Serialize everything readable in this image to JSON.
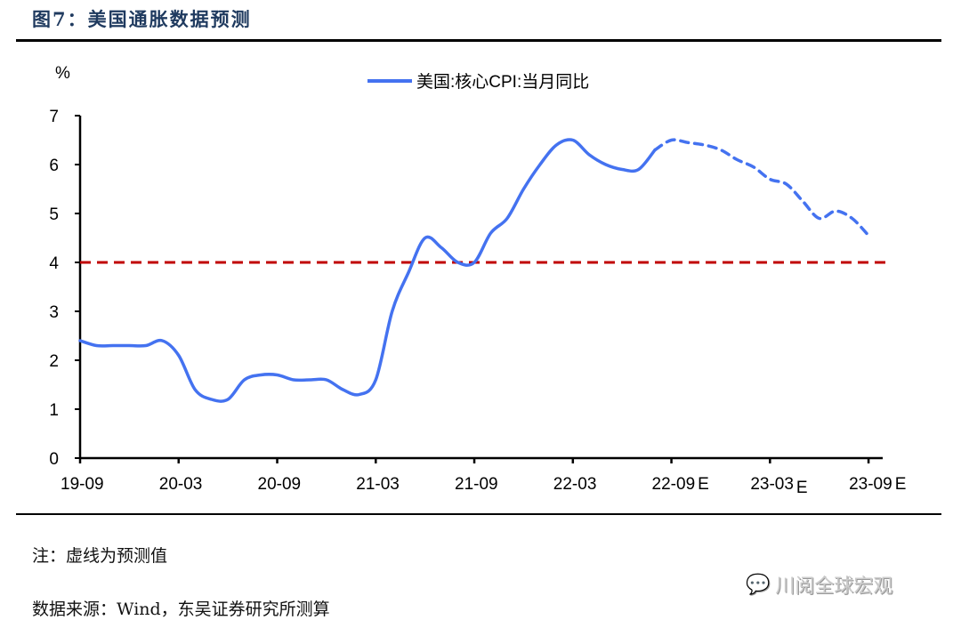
{
  "title": "图7：美国通胀数据预测",
  "note": "注：虚线为预测值",
  "source": "数据来源：Wind，东吴证券研究所测算",
  "watermark": "川阅全球宏观",
  "colors": {
    "series": "#4472f0",
    "threshold": "#c00000",
    "title": "#1f3a5f"
  },
  "chart_data": {
    "type": "line",
    "ylabel": "%",
    "ylim": [
      0,
      7
    ],
    "yticks": [
      0,
      1,
      2,
      3,
      4,
      5,
      6,
      7
    ],
    "xticks": [
      "19-09",
      "20-03",
      "20-09",
      "21-03",
      "21-09",
      "22-03",
      "22-09E",
      "23-03E",
      "23-09E"
    ],
    "xtick_labels": [
      {
        "text": "19-09",
        "suffix": ""
      },
      {
        "text": "20-03",
        "suffix": ""
      },
      {
        "text": "20-09",
        "suffix": ""
      },
      {
        "text": "21-03",
        "suffix": ""
      },
      {
        "text": "21-09",
        "suffix": ""
      },
      {
        "text": "22-03",
        "suffix": ""
      },
      {
        "text": "22-09",
        "suffix": "E"
      },
      {
        "text": "23-03",
        "suffix": "E"
      },
      {
        "text": "23-09",
        "suffix": "E"
      }
    ],
    "legend": {
      "label": "美国:核心CPI:当月同比",
      "placement": "top-center"
    },
    "reference_line": {
      "y": 4,
      "style": "dashed"
    },
    "x_start": "2019-09",
    "series": [
      {
        "name": "美国:核心CPI:当月同比",
        "style": "solid",
        "x": [
          "2019-09",
          "2019-10",
          "2019-11",
          "2019-12",
          "2020-01",
          "2020-02",
          "2020-03",
          "2020-04",
          "2020-05",
          "2020-06",
          "2020-07",
          "2020-08",
          "2020-09",
          "2020-10",
          "2020-11",
          "2020-12",
          "2021-01",
          "2021-02",
          "2021-03",
          "2021-04",
          "2021-05",
          "2021-06",
          "2021-07",
          "2021-08",
          "2021-09",
          "2021-10",
          "2021-11",
          "2021-12",
          "2022-01",
          "2022-02",
          "2022-03",
          "2022-04",
          "2022-05",
          "2022-06",
          "2022-07",
          "2022-08"
        ],
        "values": [
          2.4,
          2.3,
          2.3,
          2.3,
          2.3,
          2.4,
          2.1,
          1.4,
          1.2,
          1.2,
          1.6,
          1.7,
          1.7,
          1.6,
          1.6,
          1.6,
          1.4,
          1.3,
          1.6,
          3.0,
          3.8,
          4.5,
          4.3,
          4.0,
          4.0,
          4.6,
          4.9,
          5.5,
          6.0,
          6.4,
          6.5,
          6.2,
          6.0,
          5.9,
          5.9,
          6.3
        ]
      },
      {
        "style": "dashed",
        "x": [
          "2022-08",
          "2022-09",
          "2022-10",
          "2022-11",
          "2022-12",
          "2023-01",
          "2023-02",
          "2023-03",
          "2023-04",
          "2023-05",
          "2023-06",
          "2023-07",
          "2023-08",
          "2023-09"
        ],
        "values": [
          6.3,
          6.5,
          6.45,
          6.4,
          6.3,
          6.1,
          5.95,
          5.7,
          5.6,
          5.25,
          4.9,
          5.05,
          4.9,
          4.55
        ]
      }
    ]
  }
}
